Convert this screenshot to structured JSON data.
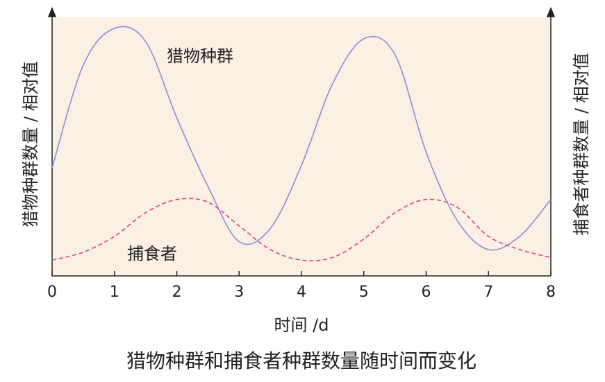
{
  "chart_data": {
    "type": "line",
    "title": "猎物种群和捕食者种群数量随时间而变化",
    "xlabel": "时间 /d",
    "ylabel": "猎物种群数量 / 相对值",
    "y2label": "捕食者种群数量 / 相对值",
    "x": [
      0,
      0.5,
      1,
      1.5,
      2,
      2.5,
      3,
      3.5,
      4,
      4.5,
      5,
      5.5,
      6,
      6.5,
      7,
      7.5,
      8
    ],
    "xlim": [
      0,
      8
    ],
    "xticks": [
      0,
      1,
      2,
      3,
      4,
      5,
      6,
      7,
      8
    ],
    "ylim": [
      0,
      10
    ],
    "y2lim": [
      0,
      10
    ],
    "series": [
      {
        "name": "猎物种群",
        "color": "#8c8cdc",
        "dashed": false,
        "values": [
          4.1,
          8.0,
          9.4,
          8.9,
          6.0,
          3.4,
          1.3,
          1.8,
          4.2,
          7.3,
          9.0,
          8.4,
          4.7,
          2.1,
          1.0,
          1.5,
          2.9
        ]
      },
      {
        "name": "捕食者",
        "color": "#e0407a",
        "dashed": true,
        "axis": "y2",
        "values": [
          0.6,
          0.9,
          1.5,
          2.4,
          2.9,
          2.8,
          1.9,
          1.0,
          0.6,
          0.7,
          1.4,
          2.4,
          2.9,
          2.6,
          1.5,
          1.0,
          0.7
        ]
      }
    ]
  }
}
